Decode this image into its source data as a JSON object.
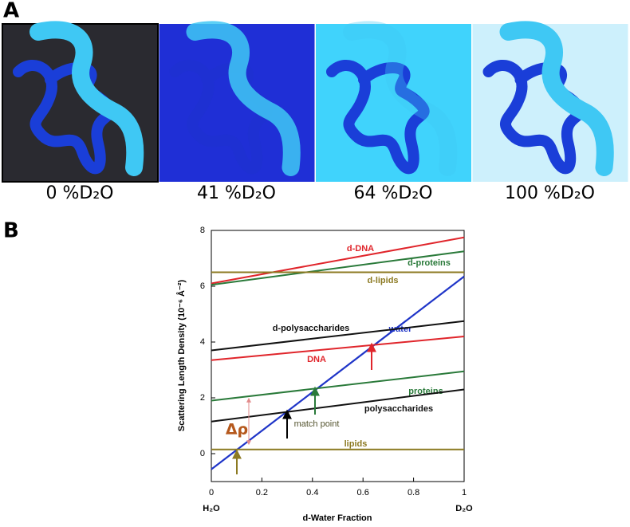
{
  "panel_a": {
    "label": "A",
    "captions": [
      "0 %D₂O",
      "41 %D₂O",
      "64 %D₂O",
      "100 %D₂O"
    ]
  },
  "panel_b_label": "B",
  "chart_data": {
    "type": "line",
    "ylabel": "Scattering Length Density (10⁻⁶ Å⁻²)",
    "xlabel": "d-Water Fraction",
    "x_end_labels": [
      "H₂O",
      "D₂O"
    ],
    "annotations": [
      "match point",
      "Δρ"
    ],
    "x": [
      0,
      1
    ],
    "series": [
      {
        "name": "d-DNA",
        "color": "#e0252b",
        "values": [
          6.1,
          7.75
        ]
      },
      {
        "name": "d-proteins",
        "color": "#2a7a3a",
        "values": [
          6.05,
          7.25
        ]
      },
      {
        "name": "d-lipids",
        "color": "#8c7a22",
        "values": [
          6.5,
          6.5
        ]
      },
      {
        "name": "water",
        "color": "#1f35c8",
        "values": [
          -0.56,
          6.35
        ]
      },
      {
        "name": "d-polysaccharides",
        "color": "#111111",
        "values": [
          3.7,
          4.75
        ]
      },
      {
        "name": "DNA",
        "color": "#e0252b",
        "values": [
          3.35,
          4.2
        ]
      },
      {
        "name": "proteins",
        "color": "#2a7a3a",
        "values": [
          1.9,
          2.95
        ]
      },
      {
        "name": "polysaccharides",
        "color": "#111111",
        "values": [
          1.15,
          2.3
        ]
      },
      {
        "name": "lipids",
        "color": "#8c7a22",
        "values": [
          0.15,
          0.15
        ]
      }
    ],
    "xlim": [
      0,
      1
    ],
    "xticks": [
      0,
      0.2,
      0.4,
      0.6,
      0.8,
      1
    ],
    "ylim": [
      -1,
      8
    ],
    "yticks": [
      0,
      2,
      4,
      6,
      8
    ]
  }
}
